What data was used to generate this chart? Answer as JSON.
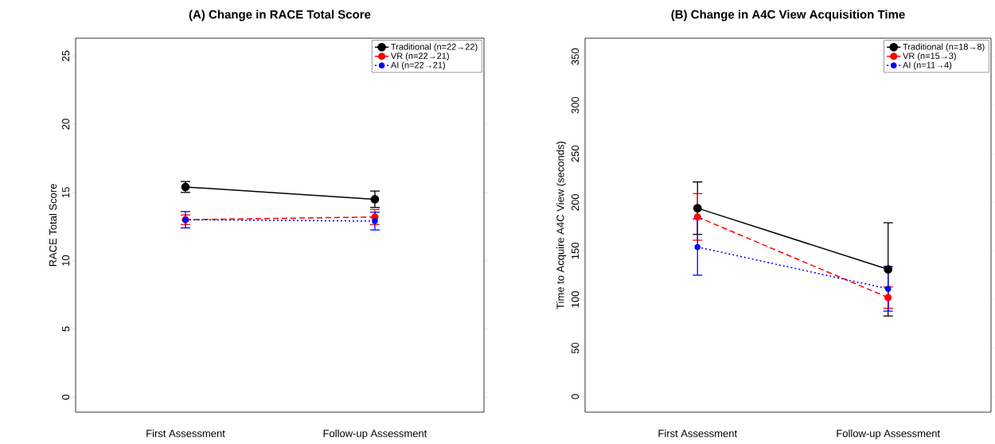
{
  "chart_data": [
    {
      "type": "line",
      "title": "(A) Change in RACE Total Score",
      "ylabel": "RACE Total Score",
      "categories": [
        "First Assessment",
        "Follow-up Assessment"
      ],
      "ylim": [
        -1.1,
        26.3
      ],
      "yticks": [
        0,
        5,
        10,
        15,
        20,
        25
      ],
      "legend": "top right",
      "marker": "circle",
      "series": [
        {
          "name": "Traditional (n=22→22)",
          "color": "#000000",
          "line_style": "solid",
          "values": [
            15.4,
            14.5
          ],
          "errors": [
            0.4,
            0.6
          ]
        },
        {
          "name": "VR (n=22→21)",
          "color": "#ff0000",
          "line_style": "dashed",
          "values": [
            13.0,
            13.2
          ],
          "errors": [
            0.35,
            0.55
          ]
        },
        {
          "name": "AI (n=22→21)",
          "color": "#0000ff",
          "line_style": "dotted",
          "values": [
            13.0,
            12.9
          ],
          "errors": [
            0.6,
            0.65
          ]
        }
      ]
    },
    {
      "type": "line",
      "title": "(B) Change in A4C View Acquisition Time",
      "ylabel": "Time to Acquire A4C View (seconds)",
      "categories": [
        "First Assessment",
        "Follow-up Assessment"
      ],
      "ylim": [
        -16,
        369
      ],
      "yticks": [
        0,
        50,
        100,
        150,
        200,
        250,
        300,
        350
      ],
      "legend": "top right",
      "marker": "circle",
      "series": [
        {
          "name": "Traditional (n=18→8)",
          "color": "#000000",
          "line_style": "solid",
          "values": [
            194,
            131
          ],
          "errors": [
            27,
            48
          ]
        },
        {
          "name": "VR (n=15→3)",
          "color": "#ff0000",
          "line_style": "dashed",
          "values": [
            185,
            102
          ],
          "errors": [
            24,
            11
          ]
        },
        {
          "name": "AI (n=11→4)",
          "color": "#0000ff",
          "line_style": "dotted",
          "values": [
            154,
            111
          ],
          "errors": [
            29,
            23
          ]
        }
      ]
    }
  ]
}
